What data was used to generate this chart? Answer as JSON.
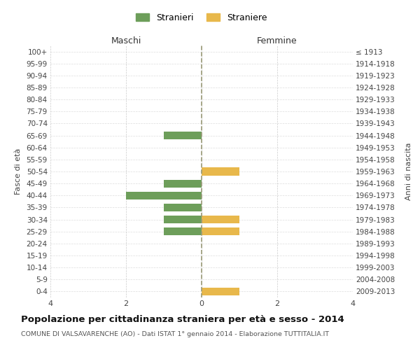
{
  "age_groups": [
    "100+",
    "95-99",
    "90-94",
    "85-89",
    "80-84",
    "75-79",
    "70-74",
    "65-69",
    "60-64",
    "55-59",
    "50-54",
    "45-49",
    "40-44",
    "35-39",
    "30-34",
    "25-29",
    "20-24",
    "15-19",
    "10-14",
    "5-9",
    "0-4"
  ],
  "birth_years": [
    "≤ 1913",
    "1914-1918",
    "1919-1923",
    "1924-1928",
    "1929-1933",
    "1934-1938",
    "1939-1943",
    "1944-1948",
    "1949-1953",
    "1954-1958",
    "1959-1963",
    "1964-1968",
    "1969-1973",
    "1974-1978",
    "1979-1983",
    "1984-1988",
    "1989-1993",
    "1994-1998",
    "1999-2003",
    "2004-2008",
    "2009-2013"
  ],
  "maschi": [
    0,
    0,
    0,
    0,
    0,
    0,
    0,
    1,
    0,
    0,
    0,
    1,
    2,
    1,
    1,
    1,
    0,
    0,
    0,
    0,
    0
  ],
  "femmine": [
    0,
    0,
    0,
    0,
    0,
    0,
    0,
    0,
    0,
    0,
    1,
    0,
    0,
    0,
    1,
    1,
    0,
    0,
    0,
    0,
    1
  ],
  "color_maschi": "#6d9e5a",
  "color_femmine": "#e8b84b",
  "title": "Popolazione per cittadinanza straniera per età e sesso - 2014",
  "subtitle": "COMUNE DI VALSAVARENCHE (AO) - Dati ISTAT 1° gennaio 2014 - Elaborazione TUTTITALIA.IT",
  "ylabel_left": "Fasce di età",
  "ylabel_right": "Anni di nascita",
  "xlabel_maschi": "Maschi",
  "xlabel_femmine": "Femmine",
  "legend_maschi": "Stranieri",
  "legend_femmine": "Straniere",
  "xlim": 4,
  "background_color": "#ffffff",
  "grid_color": "#cccccc",
  "grid_color_h": "#dddddd",
  "center_line_color": "#999977"
}
